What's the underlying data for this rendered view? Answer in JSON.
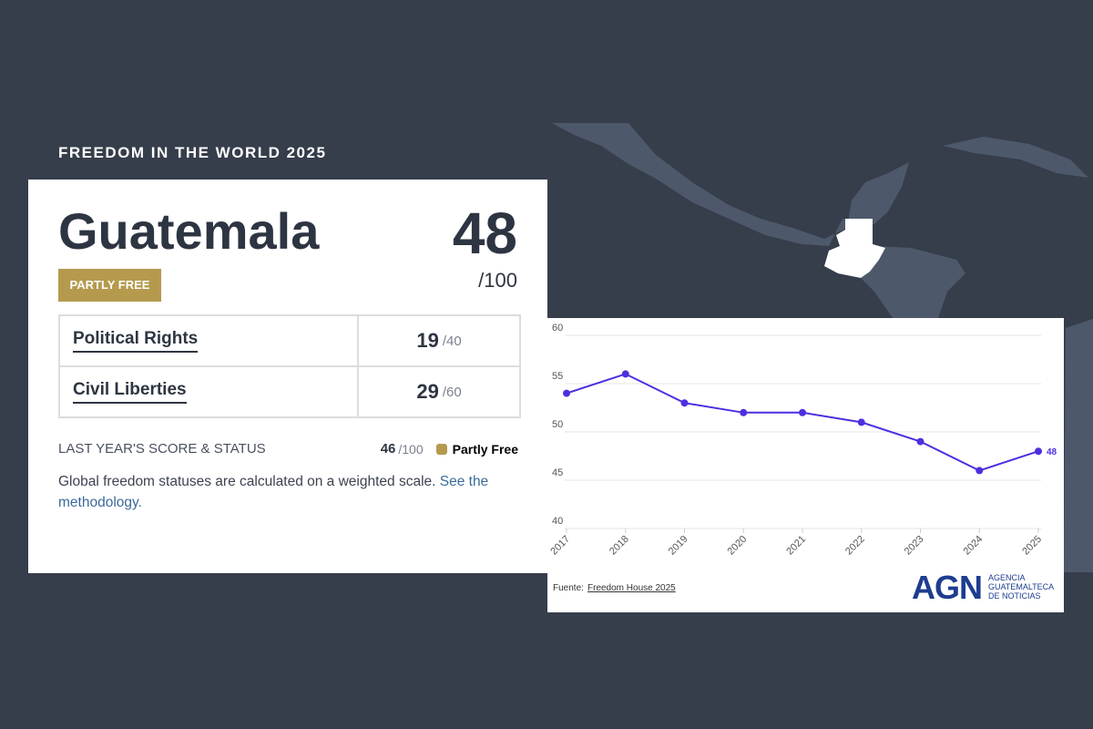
{
  "header": {
    "kicker": "FREEDOM IN THE WORLD 2025"
  },
  "card": {
    "country": "Guatemala",
    "score": 48,
    "score_max": "/100",
    "status": "PARTLY FREE",
    "rows": [
      {
        "label": "Political Rights",
        "score": 19,
        "max": "/40"
      },
      {
        "label": "Civil Liberties",
        "score": 29,
        "max": "/60"
      }
    ],
    "last_year": {
      "label": "LAST YEAR'S SCORE & STATUS",
      "score": 46,
      "max": "/100",
      "status": "Partly Free"
    },
    "note": "Global freedom statuses are calculated on a weighted scale.",
    "link": "See the methodology."
  },
  "chart_data": {
    "type": "line",
    "categories": [
      "2017",
      "2018",
      "2019",
      "2020",
      "2021",
      "2022",
      "2023",
      "2024",
      "2025"
    ],
    "series": [
      {
        "color": "#4f2ee0",
        "values": [
          54,
          56,
          53,
          52,
          52,
          51,
          49,
          46,
          48
        ]
      }
    ],
    "ylim": [
      40,
      60
    ],
    "yticks": [
      40,
      45,
      50,
      55,
      60
    ],
    "grid": true,
    "source_prefix": "Fuente:",
    "source_link": "Freedom House 2025",
    "logo": {
      "mark": "AGN",
      "lines": [
        "AGENCIA",
        "GUATEMALTECA",
        "DE NOTICIAS"
      ]
    }
  }
}
